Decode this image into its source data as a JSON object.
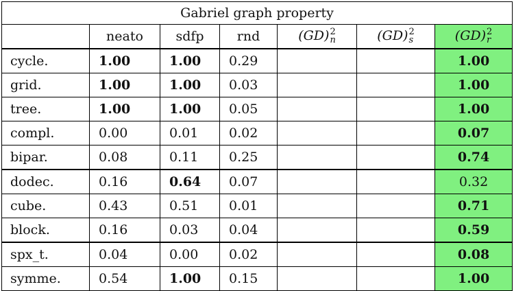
{
  "table": {
    "title": "Gabriel graph property",
    "columns": [
      {
        "label": "neato",
        "type": "text"
      },
      {
        "label": "sdfp",
        "type": "text"
      },
      {
        "label": "rnd",
        "type": "text"
      },
      {
        "label": "(GD)",
        "sup": "2",
        "sub": "n",
        "type": "math"
      },
      {
        "label": "(GD)",
        "sup": "2",
        "sub": "s",
        "type": "math"
      },
      {
        "label": "(GD)",
        "sup": "2",
        "sub": "r",
        "type": "math"
      }
    ],
    "highlight_color": "#80f080",
    "rows": [
      {
        "label": "cycle.",
        "cells": [
          {
            "v": "1.00",
            "b": true
          },
          {
            "v": "1.00",
            "b": true
          },
          {
            "v": "0.29"
          },
          {
            "v": ""
          },
          {
            "v": ""
          },
          {
            "v": "1.00",
            "b": true
          }
        ]
      },
      {
        "label": "grid.",
        "cells": [
          {
            "v": "1.00",
            "b": true
          },
          {
            "v": "1.00",
            "b": true
          },
          {
            "v": "0.03"
          },
          {
            "v": ""
          },
          {
            "v": ""
          },
          {
            "v": "1.00",
            "b": true
          }
        ]
      },
      {
        "label": "tree.",
        "cells": [
          {
            "v": "1.00",
            "b": true
          },
          {
            "v": "1.00",
            "b": true
          },
          {
            "v": "0.05"
          },
          {
            "v": ""
          },
          {
            "v": ""
          },
          {
            "v": "1.00",
            "b": true
          }
        ]
      },
      {
        "label": "compl.",
        "cells": [
          {
            "v": "0.00"
          },
          {
            "v": "0.01"
          },
          {
            "v": "0.02"
          },
          {
            "v": ""
          },
          {
            "v": ""
          },
          {
            "v": "0.07",
            "b": true
          }
        ]
      },
      {
        "label": "bipar.",
        "cells": [
          {
            "v": "0.08"
          },
          {
            "v": "0.11"
          },
          {
            "v": "0.25"
          },
          {
            "v": ""
          },
          {
            "v": ""
          },
          {
            "v": "0.74",
            "b": true
          }
        ]
      },
      {
        "label": "dodec.",
        "cells": [
          {
            "v": "0.16"
          },
          {
            "v": "0.64",
            "b": true
          },
          {
            "v": "0.07"
          },
          {
            "v": ""
          },
          {
            "v": ""
          },
          {
            "v": "0.32"
          }
        ]
      },
      {
        "label": "cube.",
        "cells": [
          {
            "v": "0.43"
          },
          {
            "v": "0.51"
          },
          {
            "v": "0.01"
          },
          {
            "v": ""
          },
          {
            "v": ""
          },
          {
            "v": "0.71",
            "b": true
          }
        ]
      },
      {
        "label": "block.",
        "cells": [
          {
            "v": "0.16"
          },
          {
            "v": "0.03"
          },
          {
            "v": "0.04"
          },
          {
            "v": ""
          },
          {
            "v": ""
          },
          {
            "v": "0.59",
            "b": true
          }
        ]
      },
      {
        "label": "spx_t.",
        "cells": [
          {
            "v": "0.04"
          },
          {
            "v": "0.00"
          },
          {
            "v": "0.02"
          },
          {
            "v": ""
          },
          {
            "v": ""
          },
          {
            "v": "0.08",
            "b": true
          }
        ]
      },
      {
        "label": "symme.",
        "cells": [
          {
            "v": "0.54"
          },
          {
            "v": "1.00",
            "b": true
          },
          {
            "v": "0.15"
          },
          {
            "v": ""
          },
          {
            "v": ""
          },
          {
            "v": "1.00",
            "b": true
          }
        ]
      }
    ]
  }
}
